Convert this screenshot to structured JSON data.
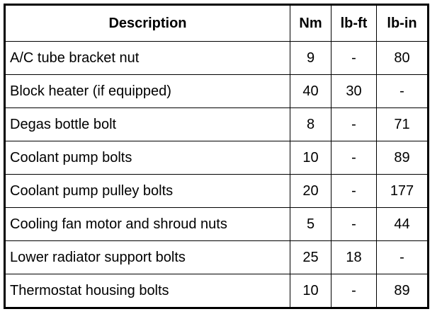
{
  "table": {
    "headers": [
      "Description",
      "Nm",
      "lb-ft",
      "lb-in"
    ],
    "rows": [
      [
        "A/C tube bracket nut",
        "9",
        "-",
        "80"
      ],
      [
        "Block heater (if equipped)",
        "40",
        "30",
        "-"
      ],
      [
        "Degas bottle bolt",
        "8",
        "-",
        "71"
      ],
      [
        "Coolant pump bolts",
        "10",
        "-",
        "89"
      ],
      [
        "Coolant pump pulley bolts",
        "20",
        "-",
        "177"
      ],
      [
        "Cooling fan motor and shroud nuts",
        "5",
        "-",
        "44"
      ],
      [
        "Lower radiator support bolts",
        "25",
        "18",
        "-"
      ],
      [
        "Thermostat housing bolts",
        "10",
        "-",
        "89"
      ]
    ]
  }
}
